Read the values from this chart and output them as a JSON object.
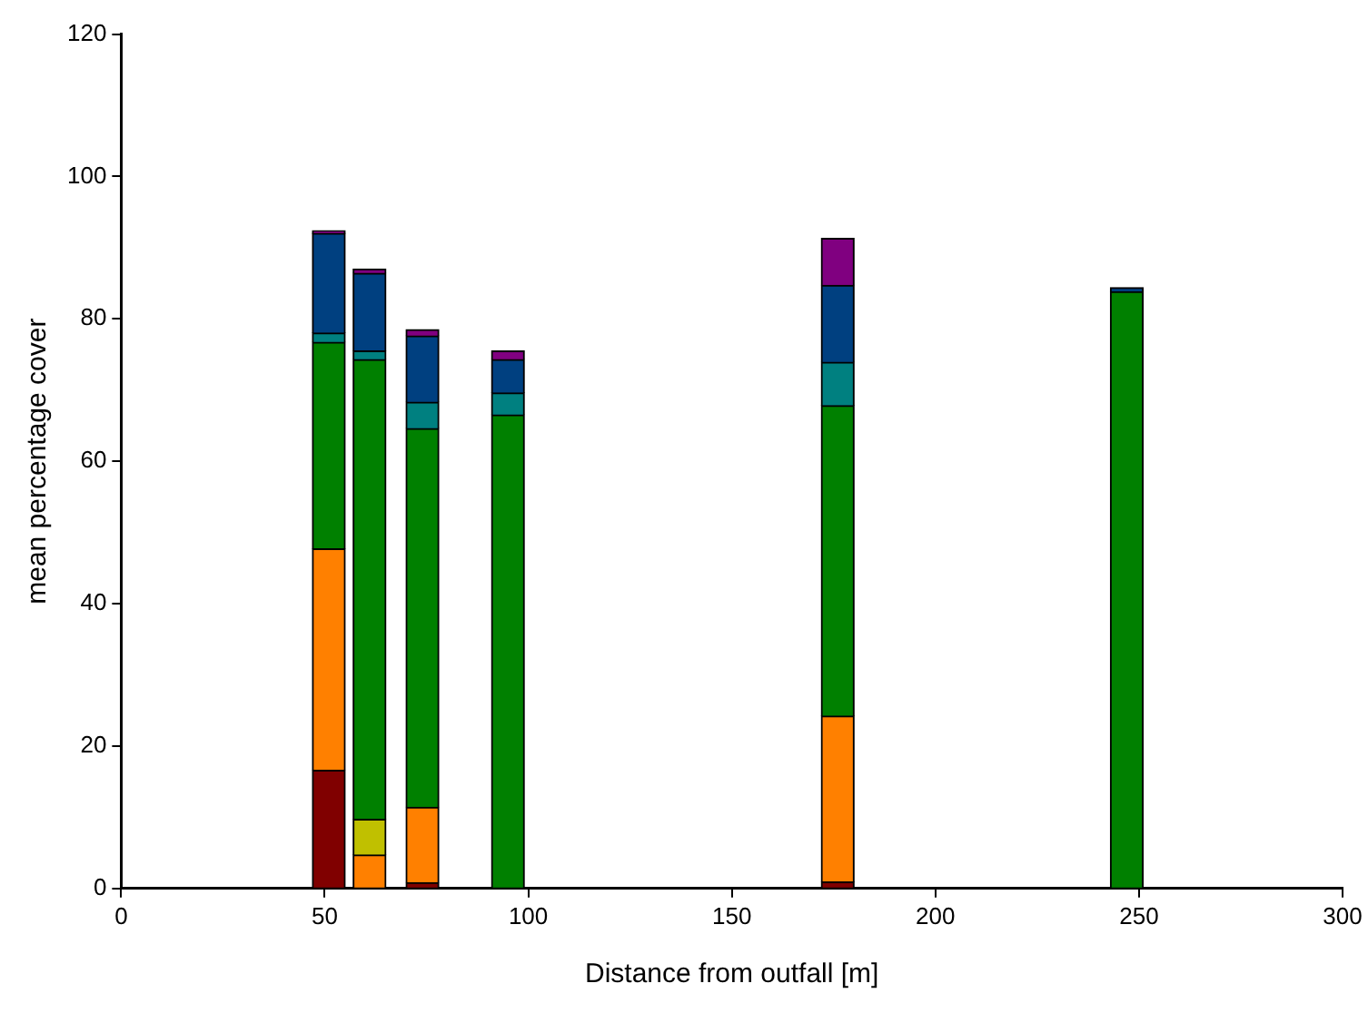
{
  "chart_data": {
    "type": "bar",
    "stacked": true,
    "xlabel": "Distance from outfall [m]",
    "ylabel": "mean percentage cover",
    "x": [
      51,
      61,
      74,
      95,
      176,
      247
    ],
    "series": [
      {
        "color": "#800000",
        "values": [
          16.6,
          null,
          0.8,
          null,
          0.9,
          null
        ]
      },
      {
        "color": "#ff8000",
        "values": [
          31.1,
          4.7,
          10.6,
          null,
          23.3,
          null
        ]
      },
      {
        "color": "#c0c000",
        "values": [
          null,
          5.0,
          null,
          null,
          null,
          null
        ]
      },
      {
        "color": "#008000",
        "values": [
          29.0,
          64.6,
          53.2,
          66.5,
          43.6,
          83.8
        ]
      },
      {
        "color": "#008080",
        "values": [
          1.3,
          1.2,
          3.7,
          3.1,
          6.1,
          null
        ]
      },
      {
        "color": "#004080",
        "values": [
          14.0,
          10.9,
          9.3,
          4.7,
          10.8,
          0.6
        ]
      },
      {
        "color": "#800080",
        "values": [
          0.4,
          0.6,
          0.9,
          1.2,
          6.6,
          null
        ]
      }
    ],
    "xlim": [
      0,
      300
    ],
    "xticks": [
      0,
      50,
      100,
      150,
      200,
      250,
      300
    ],
    "ylim": [
      0,
      120
    ],
    "yticks": [
      0,
      20,
      40,
      60,
      80,
      100,
      120
    ],
    "grid": false,
    "legend": false
  }
}
